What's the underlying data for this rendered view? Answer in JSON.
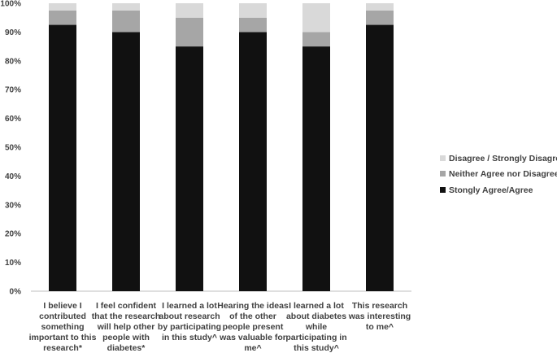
{
  "chart_data": {
    "type": "bar",
    "stacked": true,
    "categories": [
      [
        "I believe I",
        "contributed",
        "something",
        "important to this",
        "research*"
      ],
      [
        "I feel confident",
        "that the research",
        "will help other",
        "people with",
        "diabetes*"
      ],
      [
        "I learned a lot",
        "about research",
        "by participating",
        "in this study^"
      ],
      [
        "Hearing the ideas",
        "of the other",
        "people present",
        "was valuable for",
        "me^"
      ],
      [
        "I learned a lot",
        "about diabetes",
        "while",
        "participating in",
        "this study^"
      ],
      [
        "This research",
        "was interesting",
        "to me^"
      ]
    ],
    "series": [
      {
        "name": "Stongly Agree/Agree",
        "values": [
          92.5,
          90,
          85,
          90,
          85,
          92.5
        ],
        "color": "#111111"
      },
      {
        "name": "Neither Agree nor Disagree",
        "values": [
          5,
          7.5,
          10,
          5,
          5,
          5
        ],
        "color": "#a6a6a6"
      },
      {
        "name": "Disagree / Strongly Disagree",
        "values": [
          2.5,
          2.5,
          5,
          5,
          10,
          2.5
        ],
        "color": "#d9d9d9"
      }
    ],
    "legend_order": [
      "Disagree / Strongly Disagree",
      "Neither Agree nor Disagree",
      "Stongly Agree/Agree"
    ],
    "legend_position": "right",
    "ylim": [
      0,
      100
    ],
    "yticks": [
      "0%",
      "10%",
      "20%",
      "30%",
      "40%",
      "50%",
      "60%",
      "70%",
      "80%",
      "90%",
      "100%"
    ],
    "grid": false
  }
}
